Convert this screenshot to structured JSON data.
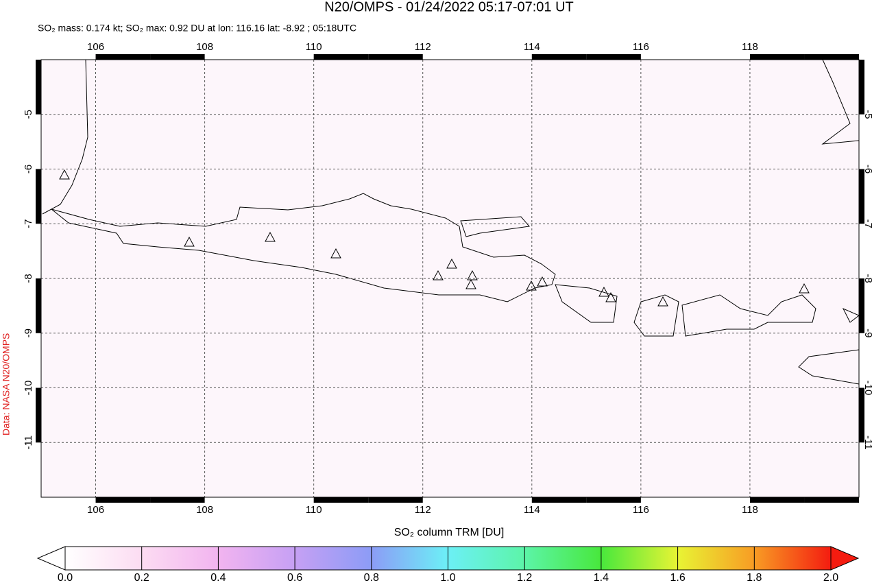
{
  "title": "N20/OMPS - 01/24/2022 05:17-07:01 UT",
  "subtitle": "SO₂ mass: 0.174 kt; SO₂ max: 0.92 DU at lon: 116.16 lat: -8.92 ; 05:18UTC",
  "credit": "Data: NASA N20/OMPS",
  "map": {
    "lonlim": [
      105,
      120
    ],
    "latlim": [
      -12,
      -4
    ],
    "xticks": [
      106,
      108,
      110,
      112,
      114,
      116,
      118
    ],
    "yticks": [
      -5,
      -6,
      -7,
      -8,
      -9,
      -10,
      -11
    ]
  },
  "colorbar": {
    "label": "SO₂ column TRM [DU]",
    "lim": [
      0,
      2
    ],
    "ticks": [
      {
        "value": 0,
        "label": "0.0"
      },
      {
        "value": 0.2,
        "label": "0.2"
      },
      {
        "value": 0.4,
        "label": "0.4"
      },
      {
        "value": 0.6,
        "label": "0.6"
      },
      {
        "value": 0.8,
        "label": "0.8"
      },
      {
        "value": 1,
        "label": "1.0"
      },
      {
        "value": 1.2,
        "label": "1.2"
      },
      {
        "value": 1.4,
        "label": "1.4"
      },
      {
        "value": 1.6,
        "label": "1.6"
      },
      {
        "value": 1.8,
        "label": "1.8"
      },
      {
        "value": 2,
        "label": "2.0"
      }
    ]
  }
}
